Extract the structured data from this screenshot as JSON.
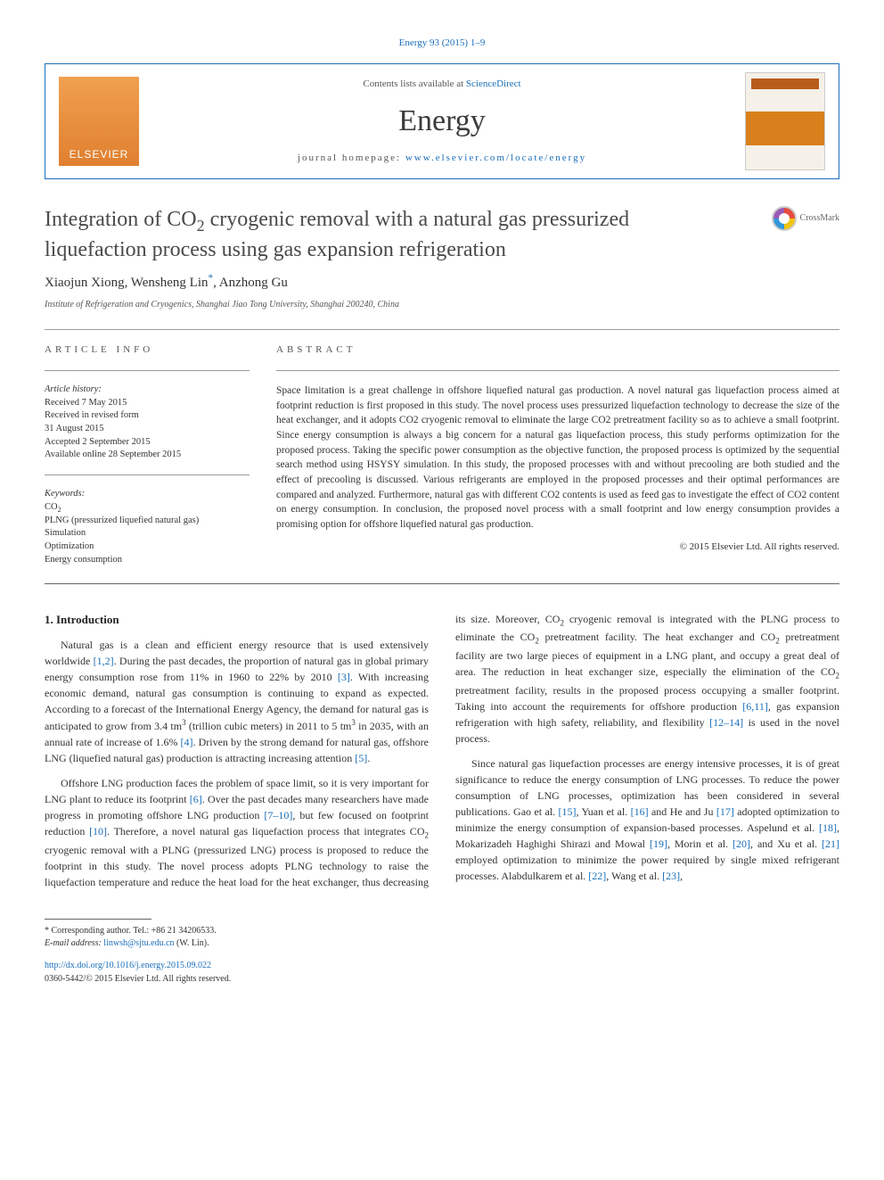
{
  "header": {
    "citation": "Energy 93 (2015) 1–9",
    "contents_prefix": "Contents lists available at ",
    "contents_link": "ScienceDirect",
    "journal_name": "Energy",
    "homepage_prefix": "journal homepage: ",
    "homepage_url": "www.elsevier.com/locate/energy",
    "publisher_logo_text": "ELSEVIER"
  },
  "crossmark_label": "CrossMark",
  "title": {
    "line1": "Integration of CO",
    "sub1": "2",
    "line1b": " cryogenic removal with a natural gas pressurized",
    "line2": "liquefaction process using gas expansion refrigeration"
  },
  "authors": "Xiaojun Xiong, Wensheng Lin",
  "author_marker": "*",
  "authors_tail": ", Anzhong Gu",
  "affiliation": "Institute of Refrigeration and Cryogenics, Shanghai Jiao Tong University, Shanghai 200240, China",
  "info": {
    "label": "ARTICLE INFO",
    "history_label": "Article history:",
    "history": [
      "Received 7 May 2015",
      "Received in revised form",
      "31 August 2015",
      "Accepted 2 September 2015",
      "Available online 28 September 2015"
    ],
    "keywords_label": "Keywords:",
    "keywords": [
      "CO2",
      "PLNG (pressurized liquefied natural gas)",
      "Simulation",
      "Optimization",
      "Energy consumption"
    ]
  },
  "abstract": {
    "label": "ABSTRACT",
    "text": "Space limitation is a great challenge in offshore liquefied natural gas production. A novel natural gas liquefaction process aimed at footprint reduction is first proposed in this study. The novel process uses pressurized liquefaction technology to decrease the size of the heat exchanger, and it adopts CO2 cryogenic removal to eliminate the large CO2 pretreatment facility so as to achieve a small footprint. Since energy consumption is always a big concern for a natural gas liquefaction process, this study performs optimization for the proposed process. Taking the specific power consumption as the objective function, the proposed process is optimized by the sequential search method using HSYSY simulation. In this study, the proposed processes with and without precooling are both studied and the effect of precooling is discussed. Various refrigerants are employed in the proposed processes and their optimal performances are compared and analyzed. Furthermore, natural gas with different CO2 contents is used as feed gas to investigate the effect of CO2 content on energy consumption. In conclusion, the proposed novel process with a small footprint and low energy consumption provides a promising option for offshore liquefied natural gas production.",
    "copyright": "© 2015 Elsevier Ltd. All rights reserved."
  },
  "body": {
    "section_heading": "1. Introduction",
    "p1a": "Natural gas is a clean and efficient energy resource that is used extensively worldwide ",
    "r1": "[1,2]",
    "p1b": ". During the past decades, the proportion of natural gas in global primary energy consumption rose from 11% in 1960 to 22% by 2010 ",
    "r2": "[3]",
    "p1c": ". With increasing economic demand, natural gas consumption is continuing to expand as expected. According to a forecast of the International Energy Agency, the demand for natural gas is anticipated to grow from 3.4 tm",
    "sup1": "3",
    "p1d": " (trillion cubic meters) in 2011 to 5 tm",
    "sup2": "3",
    "p1e": " in 2035, with an annual rate of increase of 1.6% ",
    "r3": "[4]",
    "p1f": ". Driven by the strong demand for natural gas, offshore LNG (liquefied natural gas) production is attracting increasing attention ",
    "r4": "[5]",
    "p1g": ".",
    "p2a": "Offshore LNG production faces the problem of space limit, so it is very important for LNG plant to reduce its footprint ",
    "r5": "[6]",
    "p2b": ". Over the past decades many researchers have made progress in promoting offshore LNG production ",
    "r6": "[7–10]",
    "p2c": ", but few focused on footprint reduction ",
    "r7": "[10]",
    "p2d": ". Therefore, a novel natural gas liquefaction process that integrates CO",
    "sub2": "2",
    "p2e": " cryogenic removal with a PLNG (pressurized ",
    "p3a": "LNG) process is proposed to reduce the footprint in this study. The novel process adopts PLNG technology to raise the liquefaction temperature and reduce the heat load for the heat exchanger, thus decreasing its size. Moreover, CO",
    "sub3": "2",
    "p3b": " cryogenic removal is integrated with the PLNG process to eliminate the CO",
    "sub4": "2",
    "p3c": " pretreatment facility. The heat exchanger and CO",
    "sub5": "2",
    "p3d": " pretreatment facility are two large pieces of equipment in a LNG plant, and occupy a great deal of area. The reduction in heat exchanger size, especially the elimination of the CO",
    "sub6": "2",
    "p3e": " pretreatment facility, results in the proposed process occupying a smaller footprint. Taking into account the requirements for offshore production ",
    "r8": "[6,11]",
    "p3f": ", gas expansion refrigeration with high safety, reliability, and flexibility ",
    "r9": "[12–14]",
    "p3g": " is used in the novel process.",
    "p4a": "Since natural gas liquefaction processes are energy intensive processes, it is of great significance to reduce the energy consumption of LNG processes. To reduce the power consumption of LNG processes, optimization has been considered in several publications. Gao et al. ",
    "r10": "[15]",
    "p4b": ", Yuan et al. ",
    "r11": "[16]",
    "p4c": " and He and Ju ",
    "r12": "[17]",
    "p4d": " adopted optimization to minimize the energy consumption of expansion-based processes. Aspelund et al. ",
    "r13": "[18]",
    "p4e": ", Mokarizadeh Haghighi Shirazi and Mowal ",
    "r14": "[19]",
    "p4f": ", Morin et al. ",
    "r15": "[20]",
    "p4g": ", and Xu et al. ",
    "r16": "[21]",
    "p4h": " employed optimization to minimize the power required by single mixed refrigerant processes. Alabdulkarem et al. ",
    "r17": "[22]",
    "p4i": ", Wang et al. ",
    "r18": "[23]",
    "p4j": ","
  },
  "footnote": {
    "corr": "* Corresponding author. Tel.: +86 21 34206533.",
    "email_label": "E-mail address: ",
    "email": "linwsh@sjtu.edu.cn",
    "email_tail": " (W. Lin)."
  },
  "doi": {
    "url": "http://dx.doi.org/10.1016/j.energy.2015.09.022",
    "issn": "0360-5442/© 2015 Elsevier Ltd. All rights reserved."
  },
  "colors": {
    "link": "#1a6eb8",
    "text": "#333333",
    "rule": "#666666"
  }
}
